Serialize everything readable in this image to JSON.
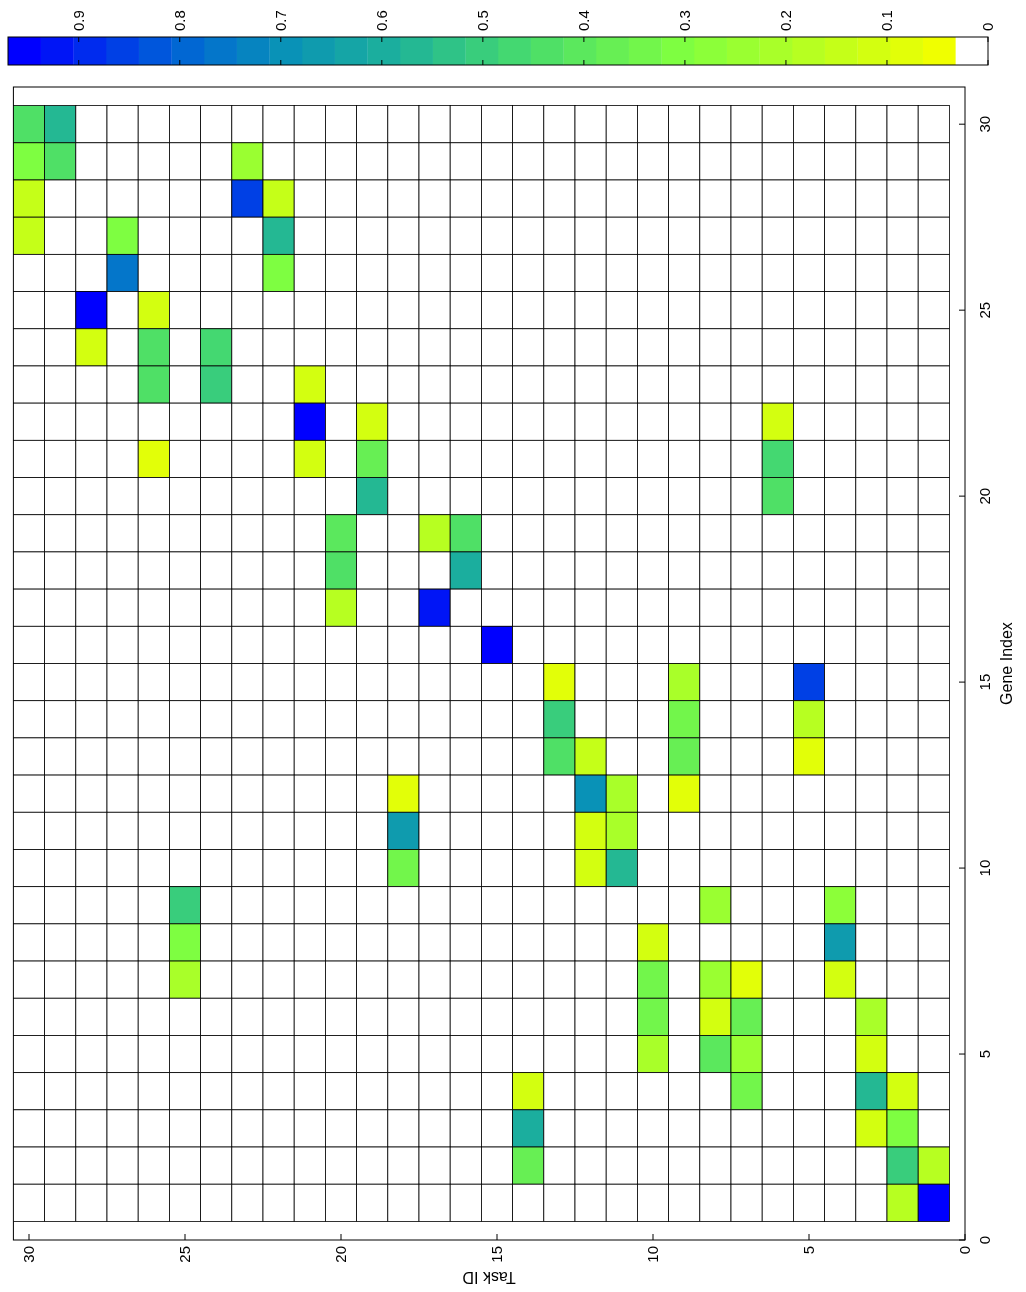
{
  "chart_data": {
    "type": "heatmap",
    "xlabel": "Task ID",
    "ylabel": "Gene Index",
    "x": [
      30,
      29,
      28,
      27,
      26,
      25,
      24,
      23,
      22,
      21,
      20,
      19,
      18,
      17,
      16,
      15,
      14,
      13,
      12,
      11,
      10,
      9,
      8,
      7,
      6,
      5,
      4,
      3,
      2,
      1
    ],
    "y": [
      30,
      29,
      28,
      27,
      26,
      25,
      24,
      23,
      22,
      21,
      20,
      19,
      18,
      17,
      16,
      15,
      14,
      13,
      12,
      11,
      10,
      9,
      8,
      7,
      6,
      5,
      4,
      3,
      2,
      1
    ],
    "xlim": [
      30.5,
      0
    ],
    "ylim": [
      0,
      31
    ],
    "xticks": [
      30,
      25,
      20,
      15,
      10,
      5,
      0
    ],
    "yticks": [
      0,
      5,
      10,
      15,
      20,
      25,
      30
    ],
    "clim": [
      0,
      0.97
    ],
    "cticks": [
      0,
      0.1,
      0.2,
      0.3,
      0.4,
      0.5,
      0.6,
      0.7,
      0.8,
      0.9
    ],
    "cells": [
      [
        0.45,
        0.55,
        null,
        null,
        null,
        null,
        null,
        null,
        null,
        null,
        null,
        null,
        null,
        null,
        null,
        null,
        null,
        null,
        null,
        null,
        null,
        null,
        null,
        null,
        null,
        null,
        null,
        null,
        null,
        null
      ],
      [
        0.3,
        0.45,
        null,
        null,
        null,
        null,
        null,
        0.25,
        null,
        null,
        null,
        null,
        null,
        null,
        null,
        null,
        null,
        null,
        null,
        null,
        null,
        null,
        null,
        null,
        null,
        null,
        null,
        null,
        null,
        null
      ],
      [
        0.15,
        null,
        null,
        null,
        null,
        null,
        null,
        0.85,
        0.15,
        null,
        null,
        null,
        null,
        null,
        null,
        null,
        null,
        null,
        null,
        null,
        null,
        null,
        null,
        null,
        null,
        null,
        null,
        null,
        null,
        null
      ],
      [
        0.15,
        null,
        null,
        0.3,
        null,
        null,
        null,
        null,
        0.55,
        null,
        null,
        null,
        null,
        null,
        null,
        null,
        null,
        null,
        null,
        null,
        null,
        null,
        null,
        null,
        null,
        null,
        null,
        null,
        null,
        null
      ],
      [
        null,
        null,
        null,
        0.75,
        null,
        null,
        null,
        null,
        0.3,
        null,
        null,
        null,
        null,
        null,
        null,
        null,
        null,
        null,
        null,
        null,
        null,
        null,
        null,
        null,
        null,
        null,
        null,
        null,
        null,
        null
      ],
      [
        null,
        null,
        0.95,
        null,
        0.1,
        null,
        null,
        null,
        null,
        null,
        null,
        null,
        null,
        null,
        null,
        null,
        null,
        null,
        null,
        null,
        null,
        null,
        null,
        null,
        null,
        null,
        null,
        null,
        null,
        null
      ],
      [
        null,
        null,
        0.1,
        null,
        0.45,
        null,
        0.48,
        null,
        null,
        null,
        null,
        null,
        null,
        null,
        null,
        null,
        null,
        null,
        null,
        null,
        null,
        null,
        null,
        null,
        null,
        null,
        null,
        null,
        null,
        null
      ],
      [
        null,
        null,
        null,
        null,
        0.45,
        null,
        0.5,
        null,
        null,
        0.1,
        null,
        null,
        null,
        null,
        null,
        null,
        null,
        null,
        null,
        null,
        null,
        null,
        null,
        null,
        null,
        null,
        null,
        null,
        null,
        null
      ],
      [
        null,
        null,
        null,
        null,
        null,
        null,
        null,
        null,
        null,
        0.95,
        null,
        0.1,
        null,
        null,
        null,
        null,
        null,
        null,
        null,
        null,
        null,
        null,
        null,
        null,
        0.1,
        null,
        null,
        null,
        null,
        null
      ],
      [
        null,
        null,
        null,
        null,
        0.07,
        null,
        null,
        null,
        null,
        0.1,
        null,
        0.38,
        null,
        null,
        null,
        null,
        null,
        null,
        null,
        null,
        null,
        null,
        null,
        null,
        0.48,
        null,
        null,
        null,
        null,
        null
      ],
      [
        null,
        null,
        null,
        null,
        null,
        null,
        null,
        null,
        null,
        null,
        null,
        0.55,
        null,
        null,
        null,
        null,
        null,
        null,
        null,
        null,
        null,
        null,
        null,
        null,
        0.45,
        null,
        null,
        null,
        null,
        null
      ],
      [
        null,
        null,
        null,
        null,
        null,
        null,
        null,
        null,
        null,
        null,
        0.4,
        null,
        null,
        0.17,
        0.45,
        null,
        null,
        null,
        null,
        null,
        null,
        null,
        null,
        null,
        null,
        null,
        null,
        null,
        null,
        null
      ],
      [
        null,
        null,
        null,
        null,
        null,
        null,
        null,
        null,
        null,
        null,
        0.45,
        null,
        null,
        null,
        0.6,
        null,
        null,
        null,
        null,
        null,
        null,
        null,
        null,
        null,
        null,
        null,
        null,
        null,
        null,
        null
      ],
      [
        null,
        null,
        null,
        null,
        null,
        null,
        null,
        null,
        null,
        null,
        0.17,
        null,
        null,
        0.92,
        null,
        null,
        null,
        null,
        null,
        null,
        null,
        null,
        null,
        null,
        null,
        null,
        null,
        null,
        null,
        null
      ],
      [
        null,
        null,
        null,
        null,
        null,
        null,
        null,
        null,
        null,
        null,
        null,
        null,
        null,
        null,
        null,
        0.95,
        null,
        null,
        null,
        null,
        null,
        null,
        null,
        null,
        null,
        null,
        null,
        null,
        null,
        null
      ],
      [
        null,
        null,
        null,
        null,
        null,
        null,
        null,
        null,
        null,
        null,
        null,
        null,
        null,
        null,
        null,
        null,
        null,
        0.07,
        null,
        null,
        null,
        0.2,
        null,
        null,
        null,
        0.85,
        null,
        null,
        null,
        null
      ],
      [
        null,
        null,
        null,
        null,
        null,
        null,
        null,
        null,
        null,
        null,
        null,
        null,
        null,
        null,
        null,
        null,
        null,
        0.5,
        null,
        null,
        null,
        0.33,
        null,
        null,
        null,
        0.17,
        null,
        null,
        null,
        null
      ],
      [
        null,
        null,
        null,
        null,
        null,
        null,
        null,
        null,
        null,
        null,
        null,
        null,
        null,
        null,
        null,
        null,
        null,
        0.45,
        0.13,
        null,
        null,
        0.37,
        null,
        null,
        null,
        0.07,
        null,
        null,
        null,
        null
      ],
      [
        null,
        null,
        null,
        null,
        null,
        null,
        null,
        null,
        null,
        null,
        null,
        null,
        0.08,
        null,
        null,
        null,
        null,
        null,
        0.7,
        0.22,
        null,
        0.08,
        null,
        null,
        null,
        null,
        null,
        null,
        null,
        null
      ],
      [
        null,
        null,
        null,
        null,
        null,
        null,
        null,
        null,
        null,
        null,
        null,
        null,
        0.65,
        null,
        null,
        null,
        null,
        null,
        0.12,
        0.22,
        null,
        null,
        null,
        null,
        null,
        null,
        null,
        null,
        null,
        null
      ],
      [
        null,
        null,
        null,
        null,
        null,
        null,
        null,
        null,
        null,
        null,
        null,
        null,
        0.33,
        null,
        null,
        null,
        null,
        null,
        0.12,
        0.55,
        null,
        null,
        null,
        null,
        null,
        null,
        null,
        null,
        null,
        null
      ],
      [
        null,
        null,
        null,
        null,
        null,
        0.5,
        null,
        null,
        null,
        null,
        null,
        null,
        null,
        null,
        null,
        null,
        null,
        null,
        null,
        null,
        null,
        null,
        0.25,
        null,
        null,
        null,
        0.28,
        null,
        null,
        null
      ],
      [
        null,
        null,
        null,
        null,
        null,
        0.3,
        null,
        null,
        null,
        null,
        null,
        null,
        null,
        null,
        null,
        null,
        null,
        null,
        null,
        null,
        0.12,
        null,
        null,
        null,
        null,
        null,
        0.65,
        null,
        null,
        null
      ],
      [
        null,
        null,
        null,
        null,
        null,
        0.2,
        null,
        null,
        null,
        null,
        null,
        null,
        null,
        null,
        null,
        null,
        null,
        null,
        null,
        null,
        0.33,
        null,
        0.25,
        0.08,
        null,
        null,
        0.12,
        null,
        null,
        null
      ],
      [
        null,
        null,
        null,
        null,
        null,
        null,
        null,
        null,
        null,
        null,
        null,
        null,
        null,
        null,
        null,
        null,
        null,
        null,
        null,
        null,
        0.33,
        null,
        0.12,
        0.37,
        null,
        null,
        null,
        0.22,
        null,
        null
      ],
      [
        null,
        null,
        null,
        null,
        null,
        null,
        null,
        null,
        null,
        null,
        null,
        null,
        null,
        null,
        null,
        null,
        null,
        null,
        null,
        null,
        0.2,
        null,
        0.4,
        0.25,
        null,
        null,
        null,
        0.12,
        null,
        null
      ],
      [
        null,
        null,
        null,
        null,
        null,
        null,
        null,
        null,
        null,
        null,
        null,
        null,
        null,
        null,
        null,
        null,
        0.1,
        null,
        null,
        null,
        null,
        null,
        null,
        0.35,
        null,
        null,
        null,
        0.55,
        0.1,
        null
      ],
      [
        null,
        null,
        null,
        null,
        null,
        null,
        null,
        null,
        null,
        null,
        null,
        null,
        null,
        null,
        null,
        null,
        0.6,
        null,
        null,
        null,
        null,
        null,
        null,
        null,
        null,
        null,
        null,
        0.12,
        0.3,
        null
      ],
      [
        null,
        null,
        null,
        null,
        null,
        null,
        null,
        null,
        null,
        null,
        null,
        null,
        null,
        null,
        null,
        null,
        0.37,
        null,
        null,
        null,
        null,
        null,
        null,
        null,
        null,
        null,
        null,
        null,
        0.5,
        0.17
      ],
      [
        null,
        null,
        null,
        null,
        null,
        null,
        null,
        null,
        null,
        null,
        null,
        null,
        null,
        null,
        null,
        null,
        null,
        null,
        null,
        null,
        null,
        null,
        null,
        null,
        null,
        null,
        null,
        null,
        0.17,
        0.95
      ]
    ]
  }
}
